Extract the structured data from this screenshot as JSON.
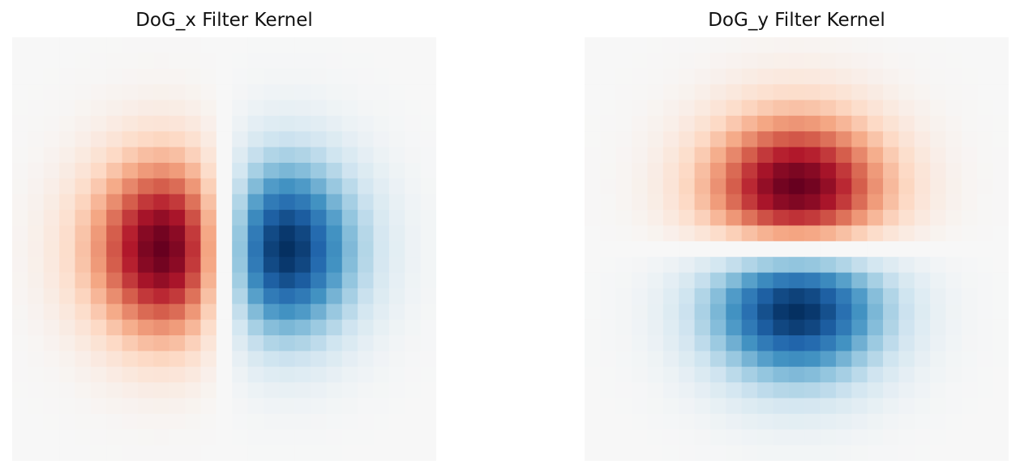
{
  "colormap": {
    "name": "RdBu",
    "stops": [
      "#67001f",
      "#b2182b",
      "#d6604d",
      "#f4a582",
      "#fddbc7",
      "#f7f7f7",
      "#d1e5f0",
      "#92c5de",
      "#4393c3",
      "#2166ac",
      "#053061"
    ],
    "positive": "red",
    "negative": "blue",
    "vmin": -1,
    "vmax": 1
  },
  "chart_data": [
    {
      "type": "heatmap",
      "title": "DoG_x Filter Kernel",
      "grid_size": 27,
      "sigma": 4,
      "orientation": "x",
      "axes": "off",
      "values_note": "Normalized derivative-of-Gaussian along x: left lobe positive (red), right lobe negative (blue), zero center column.",
      "xlabel": "",
      "ylabel": ""
    },
    {
      "type": "heatmap",
      "title": "DoG_y Filter Kernel",
      "grid_size": 27,
      "sigma": 4,
      "orientation": "y",
      "axes": "off",
      "values_note": "Normalized derivative-of-Gaussian along y: top lobe positive (red), bottom lobe negative (blue), zero center row.",
      "xlabel": "",
      "ylabel": ""
    }
  ]
}
